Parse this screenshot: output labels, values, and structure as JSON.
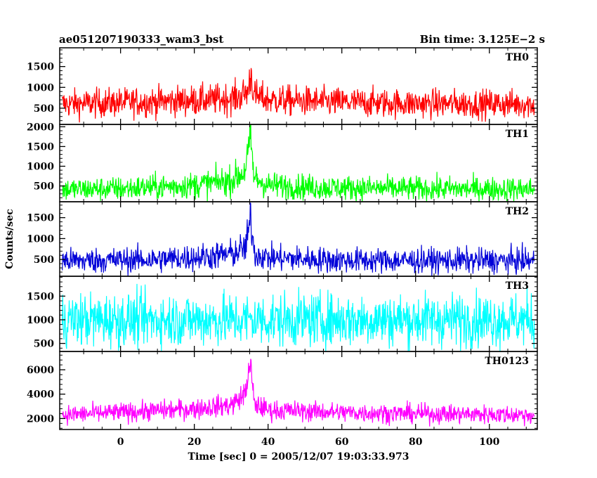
{
  "header": {
    "left": "ae051207190333_wam3_bst",
    "right": "Bin time: 3.125E−2 s"
  },
  "chart_data": {
    "type": "line",
    "xlabel": "Time [sec] 0 = 2005/12/07 19:03:33.973",
    "ylabel": "Counts/sec",
    "xlim": [
      -16.5,
      113
    ],
    "xticks": [
      0,
      20,
      40,
      60,
      80,
      100
    ],
    "x_range_data": [
      -15.8,
      112.2
    ],
    "bin_time_s": 0.03125,
    "panels": [
      {
        "name": "TH0",
        "color": "#ff0000",
        "ylim": [
          110,
          1950
        ],
        "yticks": [
          500,
          1000,
          1500
        ],
        "baseline": 600,
        "noise": 170,
        "profile": [
          [
            -15.8,
            600
          ],
          [
            10,
            660
          ],
          [
            25,
            700
          ],
          [
            32,
            760
          ],
          [
            34.5,
            900
          ],
          [
            35.4,
            1350
          ],
          [
            36.2,
            800
          ],
          [
            40,
            700
          ],
          [
            55,
            650
          ],
          [
            80,
            610
          ],
          [
            112,
            600
          ]
        ]
      },
      {
        "name": "TH1",
        "color": "#00ff00",
        "ylim": [
          100,
          2060
        ],
        "yticks": [
          500,
          1000,
          1500,
          2000
        ],
        "baseline": 420,
        "noise": 150,
        "profile": [
          [
            -15.8,
            410
          ],
          [
            0,
            430
          ],
          [
            20,
            520
          ],
          [
            30,
            640
          ],
          [
            33.5,
            850
          ],
          [
            35.3,
            1650
          ],
          [
            36.2,
            700
          ],
          [
            40,
            520
          ],
          [
            55,
            460
          ],
          [
            80,
            430
          ],
          [
            112,
            420
          ]
        ]
      },
      {
        "name": "TH2",
        "color": "#0000d8",
        "ylim": [
          100,
          1880
        ],
        "yticks": [
          500,
          1000,
          1500
        ],
        "baseline": 480,
        "noise": 150,
        "profile": [
          [
            -15.8,
            470
          ],
          [
            10,
            500
          ],
          [
            25,
            580
          ],
          [
            31,
            650
          ],
          [
            34,
            800
          ],
          [
            35.3,
            1500
          ],
          [
            36.3,
            650
          ],
          [
            40,
            540
          ],
          [
            60,
            480
          ],
          [
            112,
            470
          ]
        ]
      },
      {
        "name": "TH3",
        "color": "#00ffff",
        "ylim": [
          330,
          1920
        ],
        "yticks": [
          500,
          1000,
          1500
        ],
        "baseline": 1000,
        "noise": 280,
        "profile": [
          [
            -15.8,
            1000
          ],
          [
            112,
            1000
          ]
        ]
      },
      {
        "name": "TH0123",
        "color": "#ff00ff",
        "ylim": [
          1100,
          7500
        ],
        "yticks": [
          2000,
          4000,
          6000
        ],
        "baseline": 2300,
        "noise": 380,
        "profile": [
          [
            -15.8,
            2300
          ],
          [
            0,
            2500
          ],
          [
            20,
            2800
          ],
          [
            30,
            3100
          ],
          [
            33.5,
            3900
          ],
          [
            35.3,
            6400
          ],
          [
            36.2,
            3200
          ],
          [
            40,
            2700
          ],
          [
            60,
            2500
          ],
          [
            80,
            2400
          ],
          [
            112,
            2300
          ]
        ]
      }
    ]
  }
}
